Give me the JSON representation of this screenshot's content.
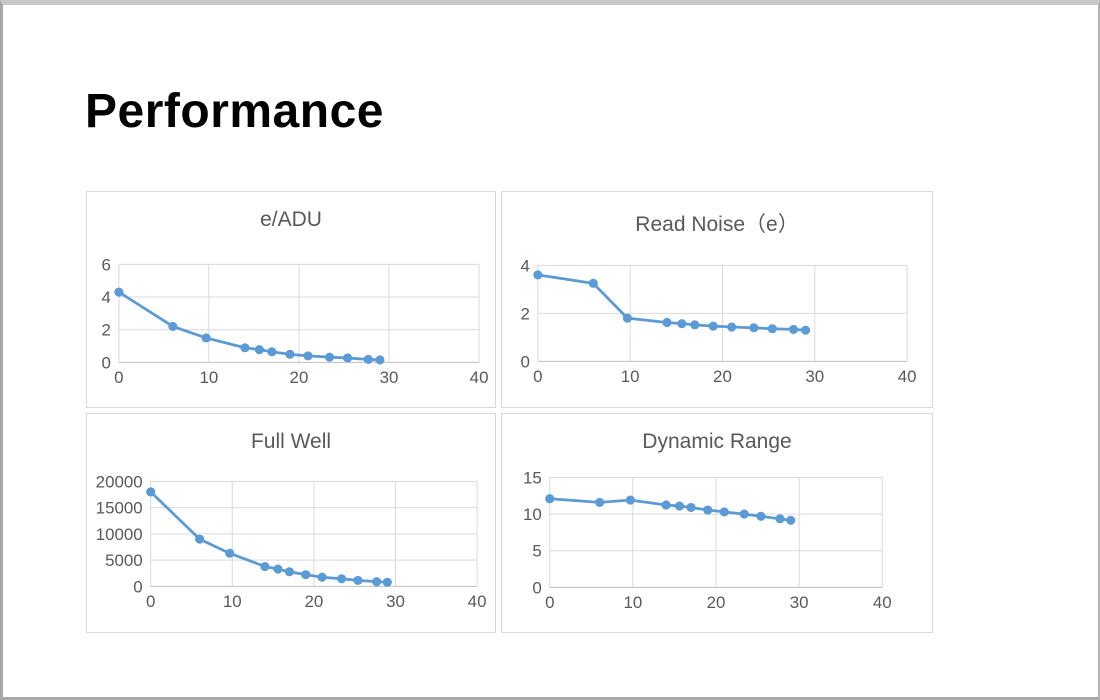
{
  "page": {
    "title": "Performance"
  },
  "theme": {
    "line_color": "#5b9bd5",
    "marker_color": "#5b9bd5",
    "grid_color": "#d9d9d9",
    "axis_color": "#bfbfbf",
    "tick_label_color": "#595959",
    "chart_title_color": "#595959",
    "panel_border_color": "#d9d9d9",
    "slide_border_color": "#a8a8a8"
  },
  "chart_data": [
    {
      "type": "line",
      "title": "e/ADU",
      "x": [
        0,
        6,
        9.7,
        14,
        15.6,
        17,
        19,
        21,
        23.4,
        25.4,
        27.7,
        29
      ],
      "y": [
        4.3,
        2.2,
        1.5,
        0.9,
        0.78,
        0.65,
        0.5,
        0.4,
        0.32,
        0.27,
        0.18,
        0.15
      ],
      "xlim": [
        0,
        40
      ],
      "ylim": [
        0,
        6
      ],
      "xticks": [
        0,
        10,
        20,
        30,
        40
      ],
      "yticks": [
        0,
        2,
        4,
        6
      ],
      "grid": true,
      "legend": false
    },
    {
      "type": "line",
      "title": "Read Noise（e）",
      "x": [
        0,
        6,
        9.7,
        14,
        15.6,
        17,
        19,
        21,
        23.4,
        25.4,
        27.7,
        29
      ],
      "y": [
        3.6,
        3.25,
        1.8,
        1.62,
        1.57,
        1.52,
        1.47,
        1.43,
        1.4,
        1.36,
        1.33,
        1.3
      ],
      "xlim": [
        0,
        40
      ],
      "ylim": [
        0,
        4
      ],
      "xticks": [
        0,
        10,
        20,
        30,
        40
      ],
      "yticks": [
        0,
        2,
        4
      ],
      "grid": true,
      "legend": false
    },
    {
      "type": "line",
      "title": "Full Well",
      "x": [
        0,
        6,
        9.7,
        14,
        15.6,
        17,
        19,
        21,
        23.4,
        25.4,
        27.7,
        29
      ],
      "y": [
        18000,
        9000,
        6300,
        3800,
        3300,
        2800,
        2250,
        1750,
        1450,
        1150,
        900,
        800
      ],
      "xlim": [
        0,
        40
      ],
      "ylim": [
        0,
        20000
      ],
      "xticks": [
        0,
        10,
        20,
        30,
        40
      ],
      "yticks": [
        0,
        5000,
        10000,
        15000,
        20000
      ],
      "grid": true,
      "legend": false
    },
    {
      "type": "line",
      "title": "Dynamic Range",
      "x": [
        0,
        6,
        9.7,
        14,
        15.6,
        17,
        19,
        21,
        23.4,
        25.4,
        27.7,
        29
      ],
      "y": [
        12.1,
        11.6,
        11.9,
        11.25,
        11.1,
        10.9,
        10.55,
        10.3,
        10.0,
        9.7,
        9.35,
        9.15
      ],
      "xlim": [
        0,
        40
      ],
      "ylim": [
        0,
        15
      ],
      "xticks": [
        0,
        10,
        20,
        30,
        40
      ],
      "yticks": [
        0,
        5,
        10,
        15
      ],
      "grid": true,
      "legend": false
    }
  ]
}
